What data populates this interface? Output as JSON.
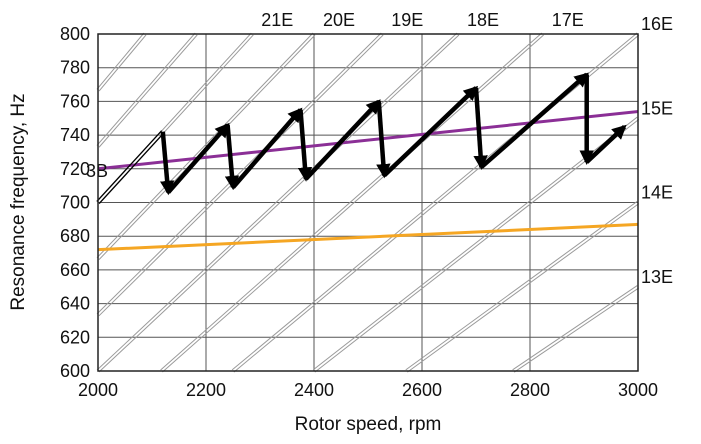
{
  "chart_data": {
    "type": "line",
    "xlabel": "Rotor speed, rpm",
    "ylabel": "Resonance frequency, Hz",
    "xlim": [
      2000,
      3000
    ],
    "ylim": [
      600,
      800
    ],
    "xticks": [
      2000,
      2200,
      2400,
      2600,
      2800,
      3000
    ],
    "yticks": [
      600,
      620,
      640,
      660,
      680,
      700,
      720,
      740,
      760,
      780,
      800
    ],
    "grid": true,
    "order_lines": {
      "description": "Engine-order lines f = E * rpm / 60",
      "orders": [
        8,
        9,
        10,
        11,
        12,
        13,
        14,
        15,
        16,
        17,
        18,
        19,
        20,
        21,
        22,
        23,
        24,
        25,
        26,
        27,
        28,
        29,
        30,
        31,
        32,
        33,
        34,
        35,
        36
      ],
      "labels_top": [
        "21E",
        "20E",
        "19E",
        "18E",
        "17E"
      ],
      "labels_right": [
        "16E",
        "15E",
        "14E",
        "13E"
      ]
    },
    "series": [
      {
        "color": "#8b2f96",
        "x": [
          2000,
          3000
        ],
        "y": [
          720,
          754
        ]
      },
      {
        "color": "#f5a623",
        "x": [
          2000,
          3000
        ],
        "y": [
          672,
          687
        ]
      },
      {
        "color": "#000000",
        "x": [
          2120,
          2130,
          2240,
          2250,
          2375,
          2385,
          2520,
          2530,
          2700,
          2710,
          2905,
          2905,
          2975
        ],
        "y": [
          742,
          706,
          746,
          709,
          755,
          714,
          760,
          716,
          768,
          721,
          776,
          724,
          745
        ]
      }
    ],
    "annotations": [
      {
        "text": "3B",
        "x": 2000,
        "y": 700,
        "x_end": 2120,
        "y_end": 742,
        "line_style": "double"
      }
    ]
  }
}
